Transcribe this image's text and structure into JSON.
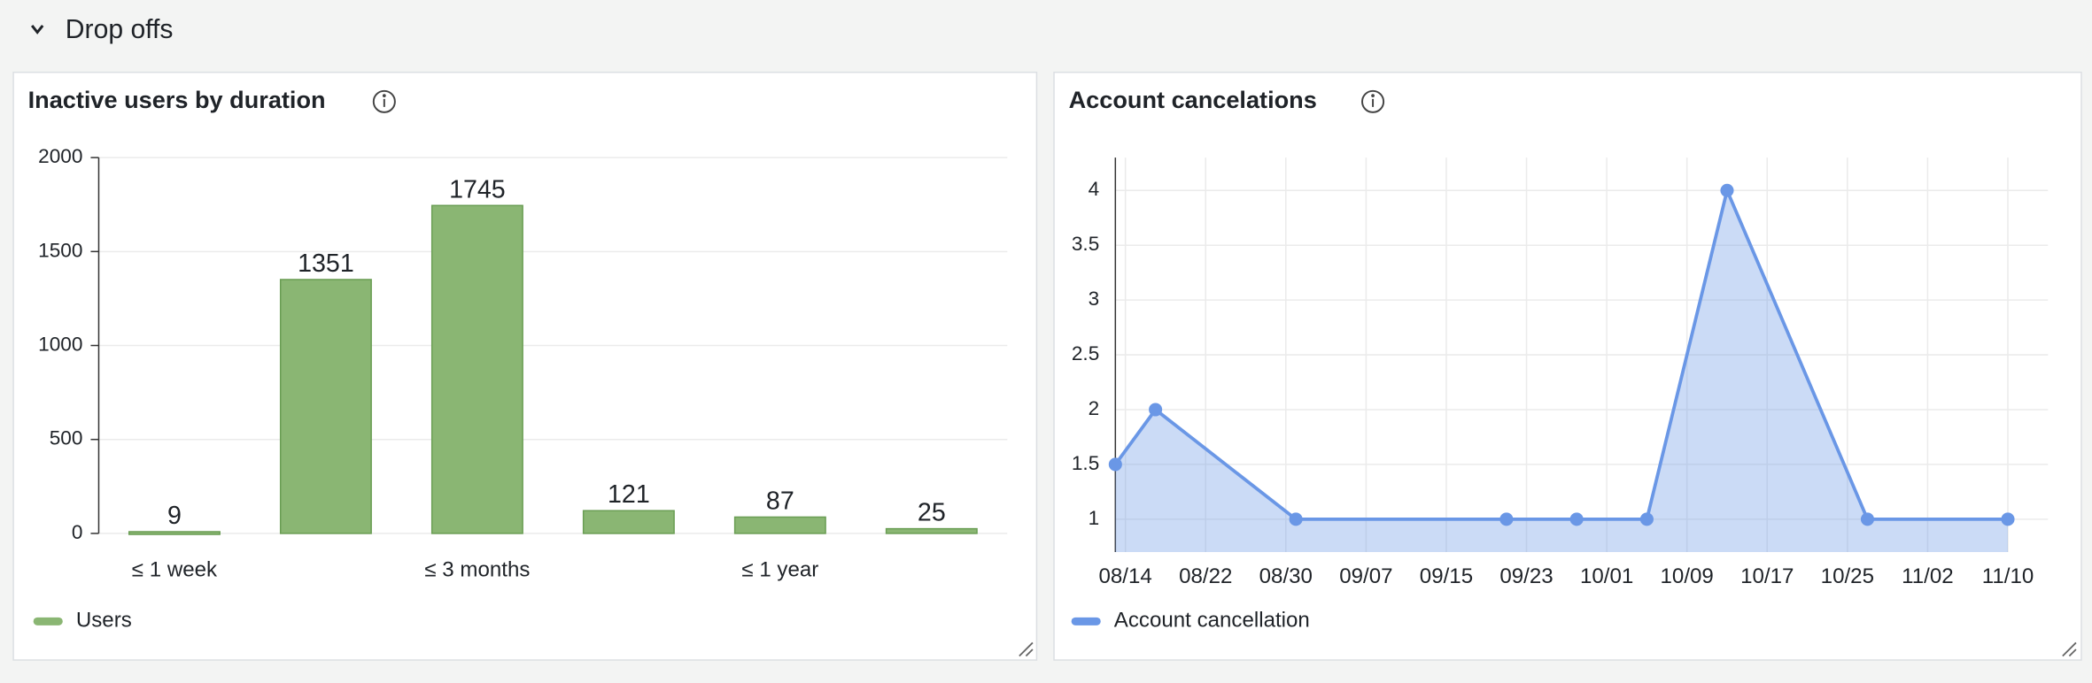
{
  "header": {
    "title": "Drop offs"
  },
  "chart_data": [
    {
      "type": "bar",
      "title": "Inactive users by duration",
      "categories": [
        "≤ 1 week",
        null,
        "≤ 3 months",
        null,
        "≤ 1 year",
        null
      ],
      "series": [
        {
          "name": "Users",
          "color": "#8ab673",
          "values": [
            9,
            1351,
            1745,
            121,
            87,
            25
          ]
        }
      ],
      "ylim": [
        0,
        2000
      ],
      "yticks": [
        0,
        500,
        1000,
        1500,
        2000
      ],
      "grid": true,
      "legend": "bottom-left"
    },
    {
      "type": "line",
      "title": "Account cancelations",
      "x": [
        "08/13",
        "08/17",
        "08/31",
        "09/21",
        "09/28",
        "10/05",
        "10/13",
        "10/27",
        "11/10"
      ],
      "series": [
        {
          "name": "Account cancellation",
          "color": "#6a97e6",
          "values": [
            1.5,
            2,
            1,
            1,
            1,
            1,
            4,
            1,
            1
          ]
        }
      ],
      "xlim": [
        "08/13",
        "11/14"
      ],
      "xticks": [
        "08/14",
        "08/22",
        "08/30",
        "09/07",
        "09/15",
        "09/23",
        "10/01",
        "10/09",
        "10/17",
        "10/25",
        "11/02",
        "11/10"
      ],
      "ylim": [
        0.7,
        4.3
      ],
      "yticks": [
        1,
        1.5,
        2,
        2.5,
        3,
        3.5,
        4
      ],
      "grid": true,
      "area": true,
      "legend": "bottom-left"
    }
  ]
}
